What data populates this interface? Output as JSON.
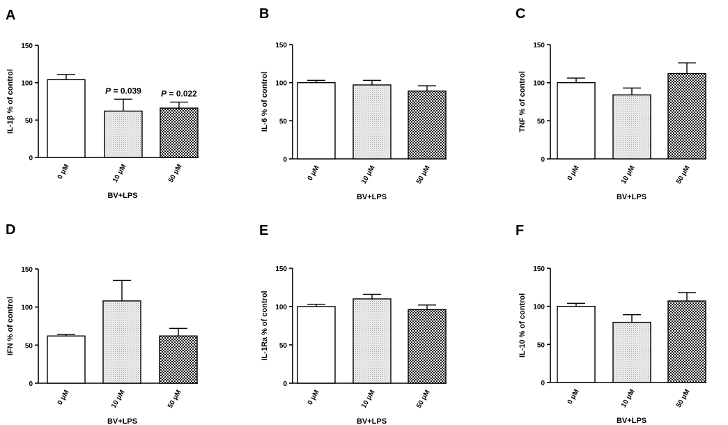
{
  "chart_data": [
    {
      "type": "bar",
      "panel": "A",
      "ylabel_pre": "IL-1",
      "ylabel_mid": "β",
      "ylabel_post": " % of control",
      "xlabel": "BV+LPS",
      "categories": [
        "0 μM",
        "10 μM",
        "50 μM"
      ],
      "values": [
        104,
        62,
        66
      ],
      "errors": [
        7,
        16,
        8
      ],
      "ylim": [
        0,
        150
      ],
      "yticks": [
        "0",
        "50",
        "100",
        "150"
      ],
      "annotations": [
        {
          "cat": 1,
          "p": "P",
          "text": " = 0.039"
        },
        {
          "cat": 2,
          "p": "P",
          "text": " = 0.022"
        }
      ]
    },
    {
      "type": "bar",
      "panel": "B",
      "ylabel": "IL-6 % of control",
      "xlabel": "BV+LPS",
      "categories": [
        "0 μM",
        "10 μM",
        "50 μM"
      ],
      "values": [
        100,
        97,
        89
      ],
      "errors": [
        3,
        6,
        7
      ],
      "ylim": [
        0,
        150
      ],
      "yticks": [
        "0",
        "50",
        "100",
        "150"
      ]
    },
    {
      "type": "bar",
      "panel": "C",
      "ylabel": "TNF % of control",
      "xlabel": "BV+LPS",
      "categories": [
        "0 μM",
        "10 μM",
        "50 μM"
      ],
      "values": [
        100,
        84,
        112
      ],
      "errors": [
        6,
        9,
        14
      ],
      "ylim": [
        0,
        150
      ],
      "yticks": [
        "0",
        "50",
        "100",
        "150"
      ]
    },
    {
      "type": "bar",
      "panel": "D",
      "ylabel": "IFN % of control",
      "xlabel": "BV+LPS",
      "categories": [
        "0 μM",
        "10 μM",
        "50 μM"
      ],
      "values": [
        62,
        108,
        62
      ],
      "errors": [
        2,
        27,
        10
      ],
      "ylim": [
        0,
        150
      ],
      "yticks": [
        "0",
        "50",
        "100",
        "150"
      ]
    },
    {
      "type": "bar",
      "panel": "E",
      "ylabel": "IL-1Ra % of control",
      "xlabel": "BV+LPS",
      "categories": [
        "0 μM",
        "10 μM",
        "50 μM"
      ],
      "values": [
        100,
        110,
        96
      ],
      "errors": [
        3,
        6,
        6
      ],
      "ylim": [
        0,
        150
      ],
      "yticks": [
        "0",
        "50",
        "100",
        "150"
      ]
    },
    {
      "type": "bar",
      "panel": "F",
      "ylabel": "IL-10 % of control",
      "xlabel": "BV+LPS",
      "categories": [
        "0 μM",
        "10 μM",
        "50 μM"
      ],
      "values": [
        100,
        79,
        107
      ],
      "errors": [
        4,
        10,
        11
      ],
      "ylim": [
        0,
        150
      ],
      "yticks": [
        "0",
        "50",
        "100",
        "150"
      ]
    }
  ],
  "colors": {
    "bar_0": "#ffffff",
    "bar_10": "#e6e6e6",
    "bar_50_dark": "#222222",
    "axis": "#000000"
  }
}
